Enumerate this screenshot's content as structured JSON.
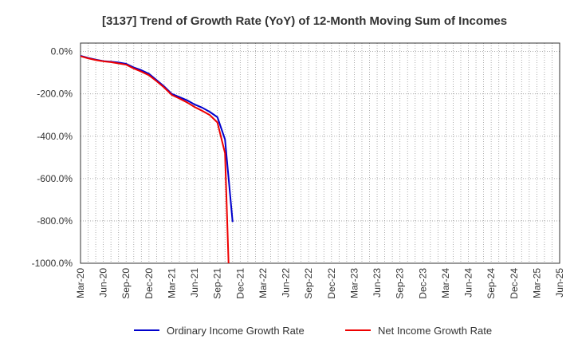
{
  "chart_data": {
    "type": "line",
    "title": "[3137]  Trend of Growth Rate (YoY) of 12-Month Moving Sum of Incomes",
    "xlabel": "",
    "ylabel": "",
    "x_start": "2020-03",
    "x_end": "2025-06",
    "x_tick_labels": [
      "Mar-20",
      "Jun-20",
      "Sep-20",
      "Dec-20",
      "Mar-21",
      "Jun-21",
      "Sep-21",
      "Dec-21",
      "Mar-22",
      "Jun-22",
      "Sep-22",
      "Dec-22",
      "Mar-23",
      "Jun-23",
      "Sep-23",
      "Dec-23",
      "Mar-24",
      "Jun-24",
      "Sep-24",
      "Dec-24",
      "Mar-25",
      "Jun-25"
    ],
    "y_ticks": [
      0,
      -200,
      -400,
      -600,
      -800,
      -1000
    ],
    "y_tick_labels": [
      "0.0%",
      "-200.0%",
      "-400.0%",
      "-600.0%",
      "-800.0%",
      "-1000.0%"
    ],
    "ylim": [
      -1000,
      40
    ],
    "grid": true,
    "legend_position": "bottom",
    "series": [
      {
        "name": "Ordinary Income Growth Rate",
        "color": "#0000cc",
        "points": [
          {
            "x": "2020-03",
            "y": -20
          },
          {
            "x": "2020-04",
            "y": -30
          },
          {
            "x": "2020-05",
            "y": -38
          },
          {
            "x": "2020-06",
            "y": -45
          },
          {
            "x": "2020-07",
            "y": -48
          },
          {
            "x": "2020-08",
            "y": -52
          },
          {
            "x": "2020-09",
            "y": -58
          },
          {
            "x": "2020-10",
            "y": -75
          },
          {
            "x": "2020-11",
            "y": -88
          },
          {
            "x": "2020-12",
            "y": -105
          },
          {
            "x": "2021-01",
            "y": -135
          },
          {
            "x": "2021-02",
            "y": -165
          },
          {
            "x": "2021-03",
            "y": -200
          },
          {
            "x": "2021-04",
            "y": -215
          },
          {
            "x": "2021-05",
            "y": -230
          },
          {
            "x": "2021-06",
            "y": -250
          },
          {
            "x": "2021-07",
            "y": -265
          },
          {
            "x": "2021-08",
            "y": -285
          },
          {
            "x": "2021-09",
            "y": -310
          },
          {
            "x": "2021-10",
            "y": -415
          },
          {
            "x": "2021-11",
            "y": -805
          }
        ]
      },
      {
        "name": "Net Income Growth Rate",
        "color": "#ee0000",
        "points": [
          {
            "x": "2020-03",
            "y": -22
          },
          {
            "x": "2020-04",
            "y": -32
          },
          {
            "x": "2020-05",
            "y": -40
          },
          {
            "x": "2020-06",
            "y": -46
          },
          {
            "x": "2020-07",
            "y": -50
          },
          {
            "x": "2020-08",
            "y": -56
          },
          {
            "x": "2020-09",
            "y": -62
          },
          {
            "x": "2020-10",
            "y": -80
          },
          {
            "x": "2020-11",
            "y": -95
          },
          {
            "x": "2020-12",
            "y": -112
          },
          {
            "x": "2021-01",
            "y": -140
          },
          {
            "x": "2021-02",
            "y": -170
          },
          {
            "x": "2021-03",
            "y": -205
          },
          {
            "x": "2021-04",
            "y": -222
          },
          {
            "x": "2021-05",
            "y": -240
          },
          {
            "x": "2021-06",
            "y": -262
          },
          {
            "x": "2021-07",
            "y": -280
          },
          {
            "x": "2021-08",
            "y": -300
          },
          {
            "x": "2021-09",
            "y": -335
          },
          {
            "x": "2021-10",
            "y": -480
          },
          {
            "x": "2021-10-15",
            "y": -1000
          }
        ]
      }
    ]
  }
}
